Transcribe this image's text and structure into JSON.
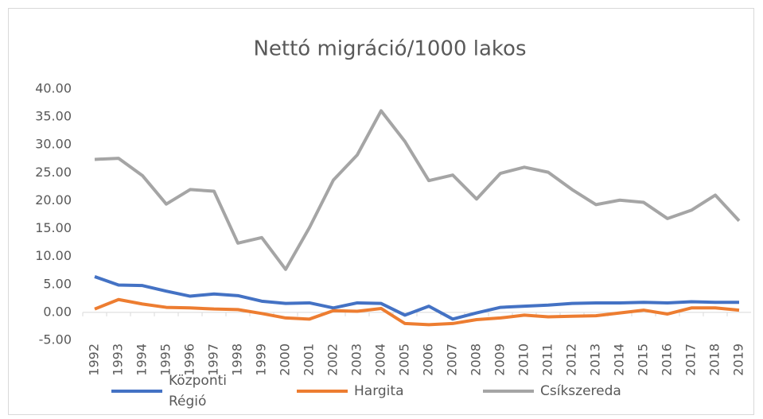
{
  "chart_data": {
    "type": "line",
    "title": "Nettó migráció/1000 lakos",
    "categories": [
      "1992",
      "1993",
      "1994",
      "1995",
      "1996",
      "1997",
      "1998",
      "1999",
      "2000",
      "2001",
      "2002",
      "2003",
      "2004",
      "2005",
      "2006",
      "2007",
      "2008",
      "2009",
      "2010",
      "2011",
      "2012",
      "2013",
      "2014",
      "2015",
      "2016",
      "2017",
      "2018",
      "2019"
    ],
    "series": [
      {
        "name": "Központi Régió",
        "color": "#4472c4",
        "values": [
          6.4,
          4.9,
          4.8,
          3.8,
          2.9,
          3.3,
          3.0,
          2.0,
          1.6,
          1.7,
          0.8,
          1.7,
          1.6,
          -0.5,
          1.1,
          -1.2,
          -0.1,
          0.9,
          1.1,
          1.3,
          1.6,
          1.7,
          1.7,
          1.8,
          1.7,
          1.9,
          1.8,
          1.8
        ]
      },
      {
        "name": "Hargita",
        "color": "#ed7d31",
        "values": [
          0.6,
          2.3,
          1.5,
          0.9,
          0.8,
          0.6,
          0.5,
          -0.2,
          -1.0,
          -1.2,
          0.3,
          0.2,
          0.7,
          -2.0,
          -2.2,
          -2.0,
          -1.3,
          -1.0,
          -0.5,
          -0.8,
          -0.7,
          -0.6,
          -0.1,
          0.4,
          -0.3,
          0.8,
          0.8,
          0.4
        ]
      },
      {
        "name": "Csíkszereda",
        "color": "#a5a5a5",
        "values": [
          27.4,
          27.6,
          24.5,
          19.4,
          22.0,
          21.7,
          12.4,
          13.4,
          7.7,
          15.2,
          23.7,
          28.2,
          36.1,
          30.6,
          23.6,
          24.6,
          20.3,
          24.9,
          26.0,
          25.1,
          22.0,
          19.3,
          20.1,
          19.7,
          16.8,
          18.3,
          21.0,
          16.4
        ]
      }
    ],
    "ylim": [
      -5,
      40
    ],
    "yticks": [
      {
        "value": -5,
        "label": "-5.00"
      },
      {
        "value": 0,
        "label": "0.00"
      },
      {
        "value": 5,
        "label": "5.00"
      },
      {
        "value": 10,
        "label": "10.00"
      },
      {
        "value": 15,
        "label": "15.00"
      },
      {
        "value": 20,
        "label": "20.00"
      },
      {
        "value": 25,
        "label": "25.00"
      },
      {
        "value": 30,
        "label": "30.00"
      },
      {
        "value": 35,
        "label": "35.00"
      },
      {
        "value": 40,
        "label": "40.00"
      }
    ],
    "grid": false,
    "legend": "bottom"
  }
}
